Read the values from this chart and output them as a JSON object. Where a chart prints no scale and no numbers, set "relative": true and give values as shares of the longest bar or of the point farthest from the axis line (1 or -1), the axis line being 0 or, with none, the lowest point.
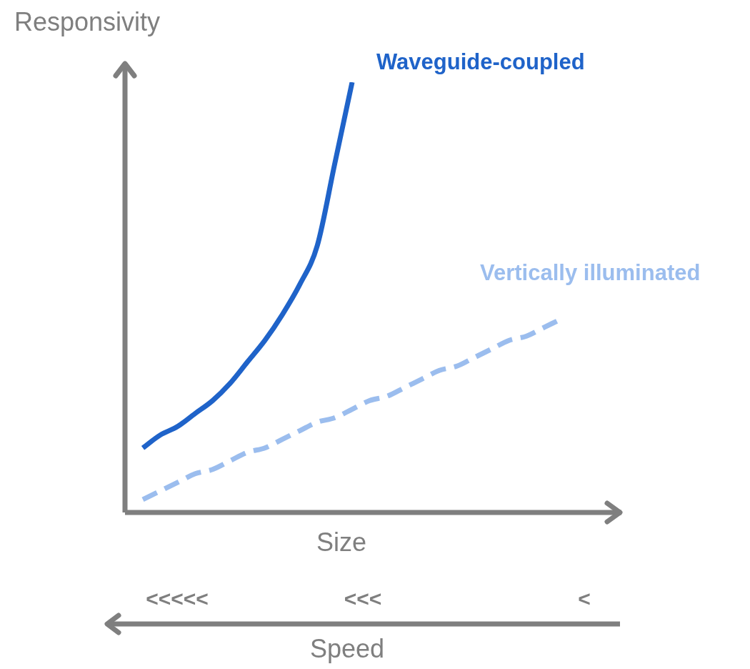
{
  "chart_data": {
    "type": "line",
    "relative": true,
    "ylabel": "Responsivity",
    "xlabel": "Size",
    "categories": [
      null,
      null,
      null,
      null,
      null,
      null,
      null,
      null,
      null,
      null,
      null,
      null,
      null,
      null,
      null,
      null,
      null,
      null,
      null,
      null,
      null,
      null,
      null,
      null,
      null
    ],
    "series": [
      {
        "name": "Waveguide-coupled",
        "color": "#1f63c9",
        "line_style": "solid",
        "values": [
          0.15,
          0.18,
          0.2,
          0.23,
          0.26,
          0.3,
          0.35,
          0.4,
          0.46,
          0.53,
          0.62,
          0.81,
          1,
          null,
          null,
          null,
          null,
          null,
          null,
          null,
          null,
          null,
          null,
          null,
          null
        ]
      },
      {
        "name": "Vertically illuminated",
        "color": "#9bbdee",
        "line_style": "dashed",
        "values": [
          0.03,
          0.05,
          0.07,
          0.09,
          0.1,
          0.12,
          0.14,
          0.15,
          0.17,
          0.19,
          0.21,
          0.22,
          0.24,
          0.26,
          0.27,
          0.29,
          0.31,
          0.33,
          0.34,
          0.36,
          0.38,
          0.4,
          0.41,
          0.43,
          0.45
        ]
      }
    ],
    "annotations": [
      "<<<<<",
      "<<<",
      "<",
      "Speed"
    ],
    "legend": false,
    "marker": "none"
  }
}
